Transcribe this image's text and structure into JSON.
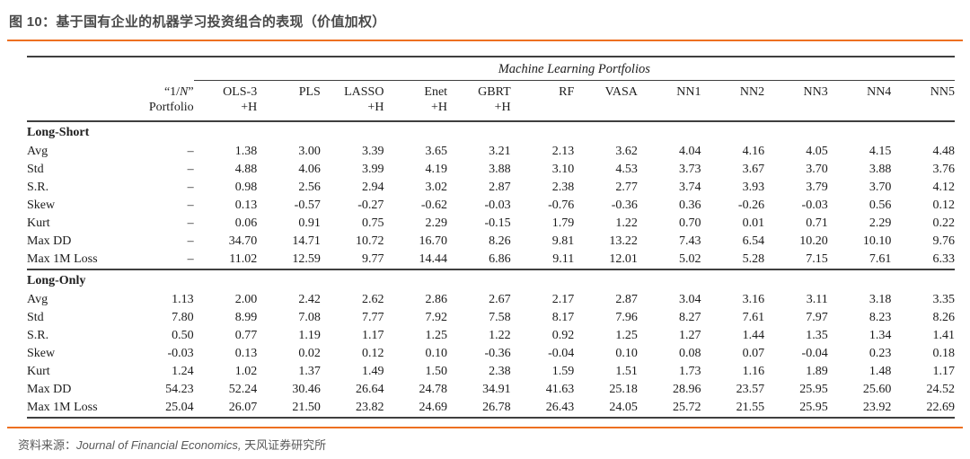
{
  "header": {
    "title": "图 10：基于国有企业的机器学习投资组合的表现（价值加权）"
  },
  "table": {
    "group_header": "Machine Learning Portfolios",
    "columns": [
      {
        "pre": "“1/",
        "it": "N",
        "post": "”",
        "line2": "Portfolio"
      },
      {
        "pre": "OLS-3",
        "line2": "+H"
      },
      {
        "pre": "PLS",
        "line2": ""
      },
      {
        "pre": "LASSO",
        "line2": "+H"
      },
      {
        "pre": "Enet",
        "line2": "+H"
      },
      {
        "pre": "GBRT",
        "line2": "+H"
      },
      {
        "pre": "RF",
        "line2": ""
      },
      {
        "pre": "VASA",
        "line2": ""
      },
      {
        "pre": "NN1",
        "line2": ""
      },
      {
        "pre": "NN2",
        "line2": ""
      },
      {
        "pre": "NN3",
        "line2": ""
      },
      {
        "pre": "NN4",
        "line2": ""
      },
      {
        "pre": "NN5",
        "line2": ""
      }
    ],
    "sections": [
      {
        "label": "Long-Short",
        "rows": [
          {
            "label": "Avg",
            "values": [
              "–",
              "1.38",
              "3.00",
              "3.39",
              "3.65",
              "3.21",
              "2.13",
              "3.62",
              "4.04",
              "4.16",
              "4.05",
              "4.15",
              "4.48"
            ]
          },
          {
            "label": "Std",
            "values": [
              "–",
              "4.88",
              "4.06",
              "3.99",
              "4.19",
              "3.88",
              "3.10",
              "4.53",
              "3.73",
              "3.67",
              "3.70",
              "3.88",
              "3.76"
            ]
          },
          {
            "label": "S.R.",
            "values": [
              "–",
              "0.98",
              "2.56",
              "2.94",
              "3.02",
              "2.87",
              "2.38",
              "2.77",
              "3.74",
              "3.93",
              "3.79",
              "3.70",
              "4.12"
            ]
          },
          {
            "label": "Skew",
            "values": [
              "–",
              "0.13",
              "-0.57",
              "-0.27",
              "-0.62",
              "-0.03",
              "-0.76",
              "-0.36",
              "0.36",
              "-0.26",
              "-0.03",
              "0.56",
              "0.12"
            ]
          },
          {
            "label": "Kurt",
            "values": [
              "–",
              "0.06",
              "0.91",
              "0.75",
              "2.29",
              "-0.15",
              "1.79",
              "1.22",
              "0.70",
              "0.01",
              "0.71",
              "2.29",
              "0.22"
            ]
          },
          {
            "label": "Max DD",
            "values": [
              "–",
              "34.70",
              "14.71",
              "10.72",
              "16.70",
              "8.26",
              "9.81",
              "13.22",
              "7.43",
              "6.54",
              "10.20",
              "10.10",
              "9.76"
            ]
          },
          {
            "label": "Max 1M Loss",
            "values": [
              "–",
              "11.02",
              "12.59",
              "9.77",
              "14.44",
              "6.86",
              "9.11",
              "12.01",
              "5.02",
              "5.28",
              "7.15",
              "7.61",
              "6.33"
            ]
          }
        ]
      },
      {
        "label": "Long-Only",
        "rows": [
          {
            "label": "Avg",
            "values": [
              "1.13",
              "2.00",
              "2.42",
              "2.62",
              "2.86",
              "2.67",
              "2.17",
              "2.87",
              "3.04",
              "3.16",
              "3.11",
              "3.18",
              "3.35"
            ]
          },
          {
            "label": "Std",
            "values": [
              "7.80",
              "8.99",
              "7.08",
              "7.77",
              "7.92",
              "7.58",
              "8.17",
              "7.96",
              "8.27",
              "7.61",
              "7.97",
              "8.23",
              "8.26"
            ]
          },
          {
            "label": "S.R.",
            "values": [
              "0.50",
              "0.77",
              "1.19",
              "1.17",
              "1.25",
              "1.22",
              "0.92",
              "1.25",
              "1.27",
              "1.44",
              "1.35",
              "1.34",
              "1.41"
            ]
          },
          {
            "label": "Skew",
            "values": [
              "-0.03",
              "0.13",
              "0.02",
              "0.12",
              "0.10",
              "-0.36",
              "-0.04",
              "0.10",
              "0.08",
              "0.07",
              "-0.04",
              "0.23",
              "0.18"
            ]
          },
          {
            "label": "Kurt",
            "values": [
              "1.24",
              "1.02",
              "1.37",
              "1.49",
              "1.50",
              "2.38",
              "1.59",
              "1.51",
              "1.73",
              "1.16",
              "1.89",
              "1.48",
              "1.17"
            ]
          },
          {
            "label": "Max DD",
            "values": [
              "54.23",
              "52.24",
              "30.46",
              "26.64",
              "24.78",
              "34.91",
              "41.63",
              "25.18",
              "28.96",
              "23.57",
              "25.95",
              "25.60",
              "24.52"
            ]
          },
          {
            "label": "Max 1M Loss",
            "values": [
              "25.04",
              "26.07",
              "21.50",
              "23.82",
              "24.69",
              "26.78",
              "26.43",
              "24.05",
              "25.72",
              "21.55",
              "25.95",
              "23.92",
              "22.69"
            ]
          }
        ]
      }
    ]
  },
  "footer": {
    "source_label": "资料来源：",
    "source_journal": "Journal of Financial Economics,",
    "source_institution": "天风证券研究所"
  },
  "colors": {
    "accent_orange": "#ED7021",
    "title_gray": "#4A4A4A",
    "footer_gray": "#595959",
    "table_ink": "#1C1C1C",
    "rule_gray": "#3F3F3F"
  }
}
